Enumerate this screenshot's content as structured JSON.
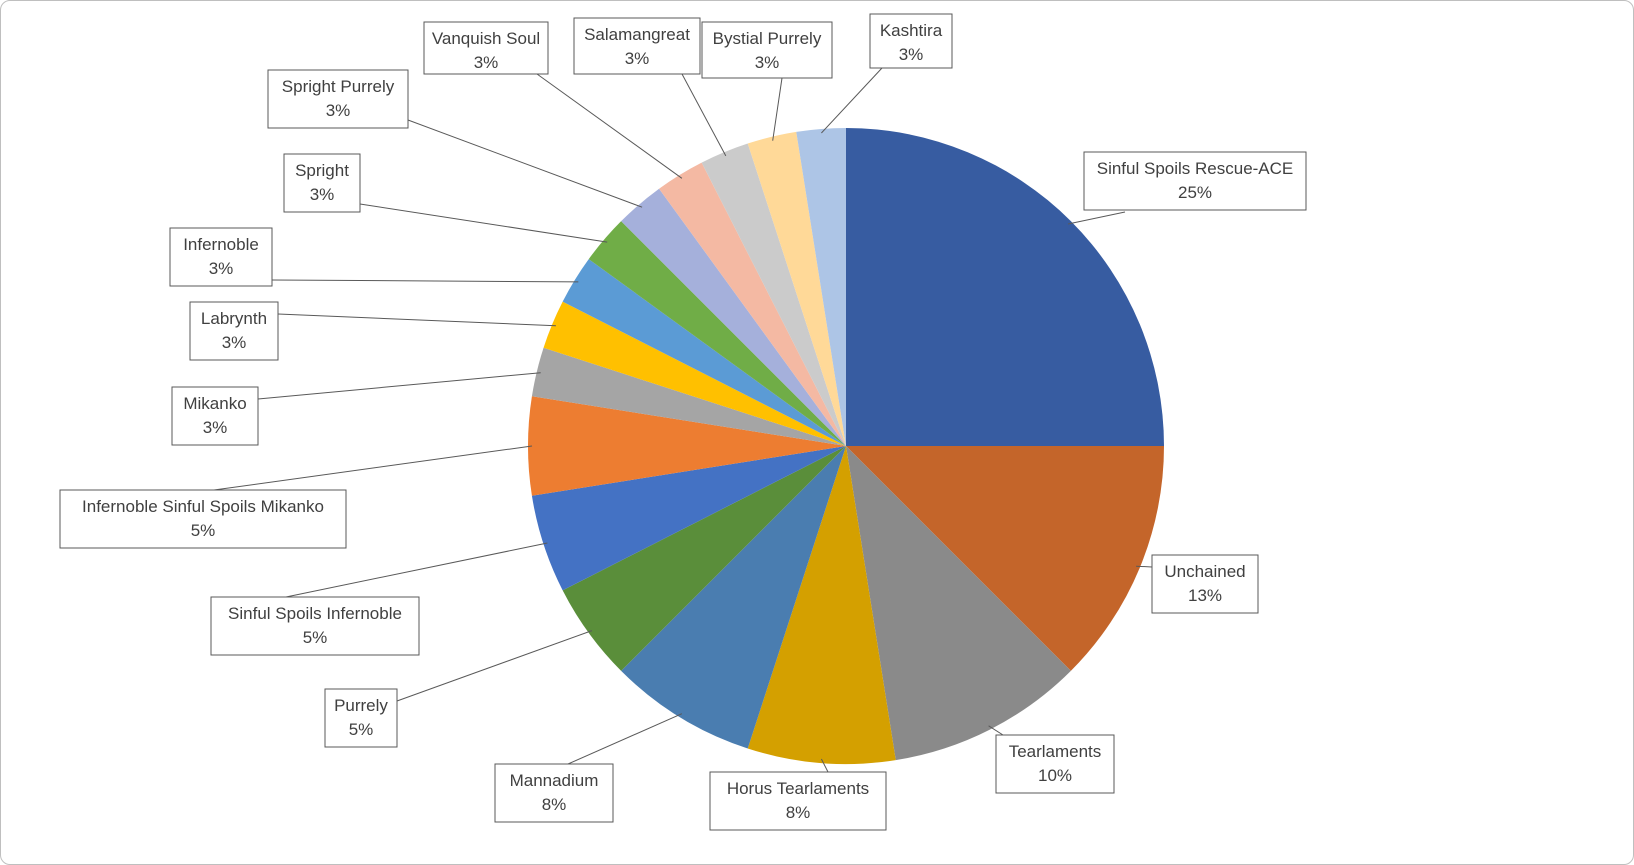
{
  "chart_data": {
    "type": "pie",
    "start_angle_deg": 0,
    "direction": "clockwise",
    "slices": [
      {
        "label": "Sinful Spoils Rescue-ACE",
        "value": 25,
        "pct_label": "25%",
        "color": "#375CA1"
      },
      {
        "label": "Unchained",
        "value": 12.5,
        "pct_label": "13%",
        "color": "#C4652A"
      },
      {
        "label": "Tearlaments",
        "value": 10,
        "pct_label": "10%",
        "color": "#8A8A8A"
      },
      {
        "label": "Horus Tearlaments",
        "value": 7.5,
        "pct_label": "8%",
        "color": "#D4A000"
      },
      {
        "label": "Mannadium",
        "value": 7.5,
        "pct_label": "8%",
        "color": "#4A7DB0"
      },
      {
        "label": "Purrely",
        "value": 5,
        "pct_label": "5%",
        "color": "#5A8E3A"
      },
      {
        "label": "Sinful Spoils Infernoble",
        "value": 5,
        "pct_label": "5%",
        "color": "#4472C4"
      },
      {
        "label": "Infernoble  Sinful Spoils Mikanko",
        "value": 5,
        "pct_label": "5%",
        "color": "#ED7D31"
      },
      {
        "label": "Mikanko",
        "value": 2.5,
        "pct_label": "3%",
        "color": "#A5A5A5"
      },
      {
        "label": "Labrynth",
        "value": 2.5,
        "pct_label": "3%",
        "color": "#FFC000"
      },
      {
        "label": "Infernoble",
        "value": 2.5,
        "pct_label": "3%",
        "color": "#5B9BD5"
      },
      {
        "label": "Spright",
        "value": 2.5,
        "pct_label": "3%",
        "color": "#70AD47"
      },
      {
        "label": "Spright Purrely",
        "value": 2.5,
        "pct_label": "3%",
        "color": "#A5B0DB"
      },
      {
        "label": "Vanquish Soul",
        "value": 2.5,
        "pct_label": "3%",
        "color": "#F4B9A3"
      },
      {
        "label": "Salamangreat",
        "value": 2.5,
        "pct_label": "3%",
        "color": "#CBCBCB"
      },
      {
        "label": "Bystial Purrely",
        "value": 2.5,
        "pct_label": "3%",
        "color": "#FFD998"
      },
      {
        "label": "Kashtira",
        "value": 2.5,
        "pct_label": "3%",
        "color": "#ADC5E6"
      }
    ],
    "legend": "none",
    "data_labels": "callouts"
  }
}
